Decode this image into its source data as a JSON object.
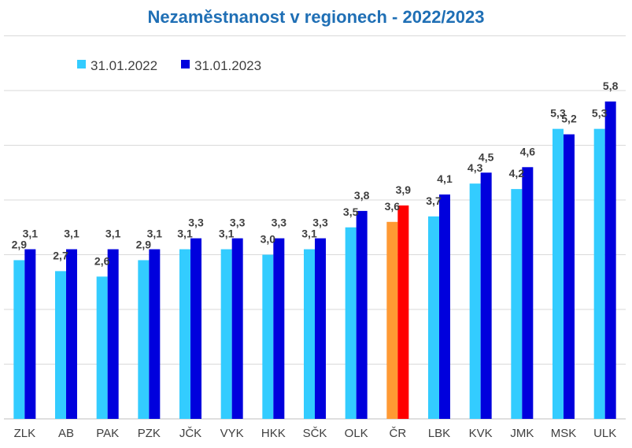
{
  "chart_data": {
    "type": "bar",
    "title": "Nezaměstnanost v regionech - 2022/2023",
    "categories": [
      "ZLK",
      "AB",
      "PAK",
      "PZK",
      "JČK",
      "VYK",
      "HKK",
      "SČK",
      "OLK",
      "ČR",
      "LBK",
      "KVK",
      "JMK",
      "MSK",
      "ULK"
    ],
    "series": [
      {
        "name": "31.01.2022",
        "color": "#33ccff",
        "highlight_color": "#ff9933",
        "values": [
          2.9,
          2.7,
          2.6,
          2.9,
          3.1,
          3.1,
          3.0,
          3.1,
          3.5,
          3.6,
          3.7,
          4.3,
          4.2,
          5.3,
          5.3
        ],
        "labels": [
          "2,9",
          "2,7",
          "2,6",
          "2,9",
          "3,1",
          "3,1",
          "3,0",
          "3,1",
          "3,5",
          "3,6",
          "3,7",
          "4,3",
          "4,2",
          "5,3",
          "5,3"
        ]
      },
      {
        "name": "31.01.2023",
        "color": "#0000dd",
        "highlight_color": "#ff0000",
        "values": [
          3.1,
          3.1,
          3.1,
          3.1,
          3.3,
          3.3,
          3.3,
          3.3,
          3.8,
          3.9,
          4.1,
          4.5,
          4.6,
          5.2,
          5.8
        ],
        "labels": [
          "3,1",
          "3,1",
          "3,1",
          "3,1",
          "3,3",
          "3,3",
          "3,3",
          "3,3",
          "3,8",
          "3,9",
          "4,1",
          "4,5",
          "4,6",
          "5,2",
          "5,8"
        ]
      }
    ],
    "highlight_category": "ČR",
    "ylim": [
      0,
      7
    ],
    "grid": true,
    "legend_position": "top-left"
  }
}
